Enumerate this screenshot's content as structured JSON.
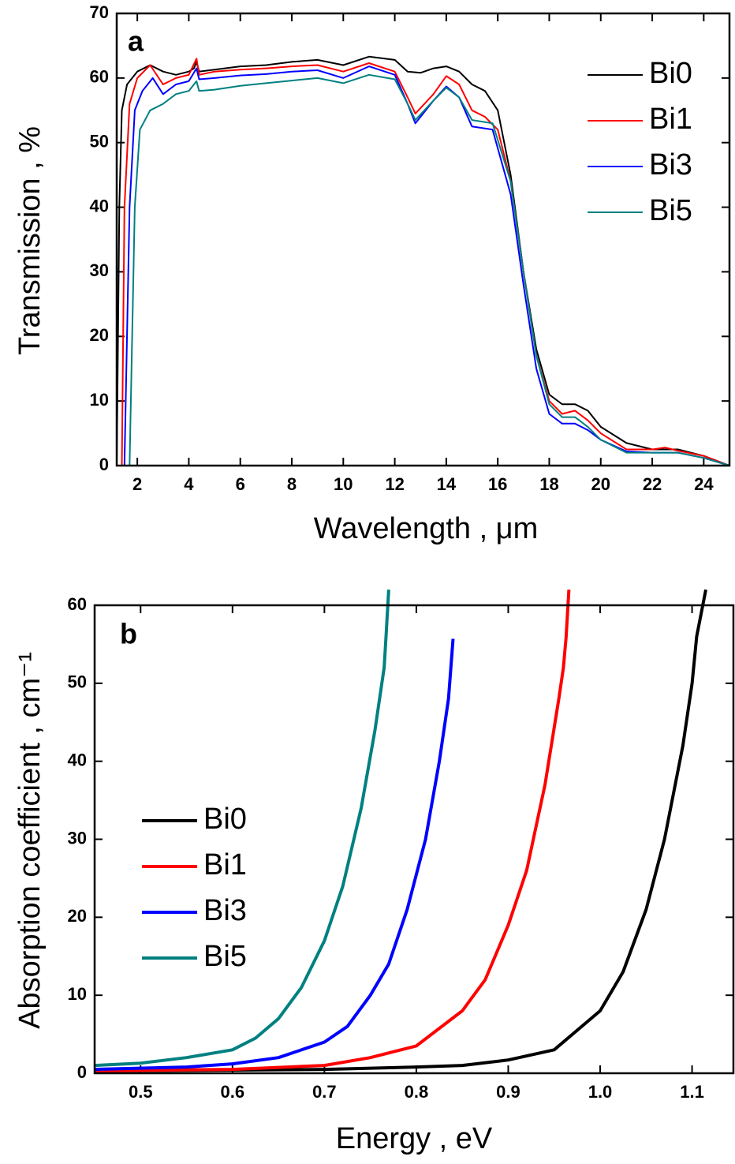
{
  "chart_data": [
    {
      "type": "line",
      "annotation": "a",
      "x_label": "Wavelength , μm",
      "y_label": "Transmission , %",
      "xlim": [
        1.2,
        25
      ],
      "ylim": [
        0,
        70
      ],
      "xticks": [
        2,
        4,
        6,
        8,
        10,
        12,
        14,
        16,
        18,
        20,
        22,
        24
      ],
      "yticks": [
        0,
        10,
        20,
        30,
        40,
        50,
        60,
        70
      ],
      "legend": "top-right",
      "line_width": 2,
      "series": [
        {
          "name": "Bi0",
          "color": "#000000",
          "x": [
            1.2,
            1.3,
            1.4,
            1.6,
            2,
            2.5,
            3,
            3.5,
            4,
            4.2,
            4.3,
            4.4,
            5,
            6,
            7,
            8,
            9,
            10,
            11,
            12,
            12.5,
            13,
            13.5,
            14,
            14.5,
            15,
            15.5,
            16,
            16.5,
            17,
            17.5,
            18,
            18.5,
            19,
            19.5,
            20,
            21,
            22,
            23,
            24,
            25
          ],
          "values": [
            0,
            40,
            55,
            59,
            61,
            62,
            61,
            60.5,
            61,
            61.5,
            62.5,
            61,
            61.3,
            61.8,
            62,
            62.5,
            62.8,
            62,
            63.3,
            62.8,
            61,
            60.8,
            61.5,
            61.8,
            61,
            59,
            58,
            55,
            45,
            30,
            18,
            11,
            9.5,
            9.5,
            8.5,
            6,
            3.5,
            2.5,
            2.5,
            1.5,
            0
          ]
        },
        {
          "name": "Bi1",
          "color": "#ff0000",
          "x": [
            1.4,
            1.5,
            1.7,
            2,
            2.5,
            3,
            3.5,
            4,
            4.3,
            4.4,
            5,
            6,
            7,
            8,
            9,
            10,
            11,
            12,
            12.5,
            12.8,
            13.5,
            14,
            14.5,
            15,
            15.5,
            16,
            16.5,
            17,
            17.5,
            18,
            18.5,
            19,
            19.5,
            20,
            21,
            22,
            22.5,
            23,
            24,
            25
          ],
          "values": [
            0,
            40,
            56,
            60,
            62,
            59,
            60,
            60.5,
            63,
            60.5,
            61,
            61.3,
            61.5,
            61.8,
            62,
            61,
            62.3,
            61,
            57,
            54.5,
            57.5,
            60.3,
            59,
            55,
            54,
            52,
            44,
            30,
            17,
            10,
            8,
            8.5,
            7,
            5,
            2.5,
            2.5,
            2.8,
            2.3,
            1.5,
            0
          ]
        },
        {
          "name": "Bi3",
          "color": "#0000ff",
          "x": [
            1.5,
            1.7,
            1.9,
            2.2,
            2.6,
            3,
            3.5,
            4,
            4.3,
            4.4,
            5,
            6,
            7,
            8,
            9,
            10,
            11,
            12,
            12.5,
            12.8,
            13.5,
            14,
            14.5,
            15,
            15.8,
            16.5,
            17,
            17.5,
            18,
            18.5,
            19,
            19.5,
            20,
            21,
            22,
            23,
            24,
            25
          ],
          "values": [
            0,
            40,
            55,
            58,
            60,
            57.5,
            59,
            59.5,
            61.5,
            59.8,
            60,
            60.4,
            60.6,
            61,
            61.2,
            60,
            61.8,
            60.5,
            56,
            53,
            56.5,
            58.7,
            57,
            52.5,
            52,
            42,
            28,
            15,
            8,
            6.5,
            6.5,
            5.5,
            4,
            2.2,
            2,
            2,
            1.2,
            0
          ]
        },
        {
          "name": "Bi5",
          "color": "#008080",
          "x": [
            1.7,
            1.9,
            2.1,
            2.5,
            3,
            3.5,
            4,
            4.3,
            4.4,
            5,
            6,
            7,
            8,
            9,
            10,
            11,
            12,
            12.5,
            12.8,
            13.5,
            14,
            14.5,
            15,
            15.8,
            16.5,
            17,
            17.5,
            18,
            18.5,
            19,
            19.5,
            20,
            21,
            22,
            23,
            24,
            25
          ],
          "values": [
            0,
            40,
            52,
            55,
            56,
            57.5,
            58,
            59.5,
            58,
            58.2,
            58.8,
            59.2,
            59.6,
            60,
            59.2,
            60.5,
            59.8,
            56,
            53.5,
            56.5,
            58.5,
            57,
            53.5,
            53,
            44,
            30,
            17,
            9.5,
            7.5,
            7.5,
            6,
            4,
            2,
            2,
            2,
            1.2,
            0
          ]
        }
      ]
    },
    {
      "type": "line",
      "annotation": "b",
      "x_label": "Energy , eV",
      "y_label": "Absorption coefficient , cm⁻¹",
      "xlim": [
        0.45,
        1.145
      ],
      "ylim": [
        0,
        60
      ],
      "xticks": [
        {
          "value": 0.5,
          "label": "0.5"
        },
        {
          "value": 0.6,
          "label": "0.6"
        },
        {
          "value": 0.7,
          "label": "0.7"
        },
        {
          "value": 0.8,
          "label": "0.8"
        },
        {
          "value": 0.9,
          "label": "0.9"
        },
        {
          "value": 1.0,
          "label": "1.0"
        },
        {
          "value": 1.1,
          "label": "1.1"
        }
      ],
      "yticks": [
        0,
        10,
        20,
        30,
        40,
        50,
        60
      ],
      "legend": "center-left",
      "line_width": 4,
      "series": [
        {
          "name": "Bi0",
          "color": "#000000",
          "x": [
            0.45,
            0.6,
            0.7,
            0.8,
            0.85,
            0.9,
            0.95,
            1.0,
            1.025,
            1.05,
            1.07,
            1.09,
            1.1,
            1.105,
            1.11,
            1.115
          ],
          "values": [
            0.3,
            0.4,
            0.5,
            0.8,
            1,
            1.7,
            3,
            8,
            13,
            21,
            30,
            42,
            50,
            56,
            59,
            62
          ]
        },
        {
          "name": "Bi1",
          "color": "#ff0000",
          "x": [
            0.45,
            0.6,
            0.7,
            0.75,
            0.8,
            0.85,
            0.875,
            0.9,
            0.92,
            0.94,
            0.955,
            0.96,
            0.963,
            0.966
          ],
          "values": [
            0.3,
            0.5,
            1,
            2,
            3.5,
            8,
            12,
            19,
            26,
            37,
            48,
            52,
            56,
            62
          ]
        },
        {
          "name": "Bi3",
          "color": "#0000ff",
          "x": [
            0.45,
            0.55,
            0.6,
            0.65,
            0.7,
            0.725,
            0.75,
            0.77,
            0.79,
            0.81,
            0.825,
            0.835,
            0.84
          ],
          "values": [
            0.5,
            0.8,
            1.2,
            2,
            4,
            6,
            10,
            14,
            21,
            30,
            40,
            48,
            55.7
          ]
        },
        {
          "name": "Bi5",
          "color": "#008080",
          "x": [
            0.45,
            0.5,
            0.55,
            0.6,
            0.625,
            0.65,
            0.675,
            0.7,
            0.72,
            0.74,
            0.755,
            0.765,
            0.767,
            0.77
          ],
          "values": [
            1,
            1.3,
            2,
            3,
            4.5,
            7,
            11,
            17,
            24,
            34,
            44,
            52,
            56,
            62
          ]
        }
      ]
    }
  ]
}
